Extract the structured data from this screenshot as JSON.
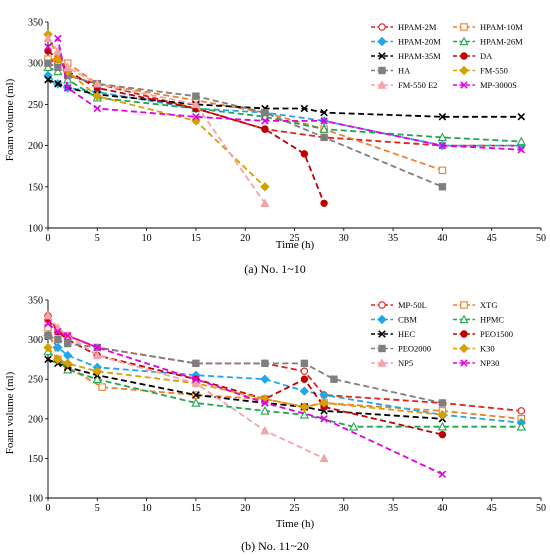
{
  "chart_data": [
    {
      "type": "line",
      "caption": "(a) No. 1~10",
      "xlabel": "Time (h)",
      "ylabel": "Foam volume (ml)",
      "xlim": [
        0,
        50
      ],
      "ylim": [
        100,
        350
      ],
      "xticks": [
        0,
        5,
        10,
        15,
        20,
        25,
        30,
        35,
        40,
        45,
        50
      ],
      "yticks": [
        100,
        150,
        200,
        250,
        300,
        350
      ],
      "grid": false,
      "legend_position": "top-right, two columns",
      "series": [
        {
          "name": "HPAM-2M",
          "color": "#e3201b",
          "marker": "circle-open",
          "x": [
            0,
            1,
            2,
            5,
            15,
            22,
            28,
            40,
            48
          ],
          "y": [
            305,
            300,
            285,
            275,
            245,
            220,
            210,
            200,
            200
          ]
        },
        {
          "name": "HPAM-10M",
          "color": "#ef7e2d",
          "marker": "square-open",
          "x": [
            0,
            1,
            2,
            5,
            15,
            22,
            28,
            40
          ],
          "y": [
            305,
            305,
            300,
            275,
            255,
            240,
            220,
            170
          ]
        },
        {
          "name": "HPAM-20M",
          "color": "#21a7e8",
          "marker": "diamond",
          "x": [
            0,
            1,
            2,
            5,
            15,
            22,
            28,
            40,
            48
          ],
          "y": [
            285,
            275,
            270,
            265,
            245,
            240,
            230,
            200,
            200
          ]
        },
        {
          "name": "HPAM-26M",
          "color": "#22a650",
          "marker": "triangle-open",
          "x": [
            0,
            1,
            2,
            5,
            15,
            22,
            28,
            40,
            48
          ],
          "y": [
            295,
            290,
            280,
            258,
            245,
            235,
            220,
            210,
            205
          ]
        },
        {
          "name": "HPAM-35M",
          "color": "#000000",
          "marker": "x",
          "x": [
            0,
            1,
            2,
            5,
            15,
            22,
            26,
            28,
            40,
            48
          ],
          "y": [
            280,
            275,
            270,
            262,
            250,
            245,
            245,
            240,
            235,
            235
          ]
        },
        {
          "name": "DA",
          "color": "#c00000",
          "marker": "circle",
          "x": [
            0,
            1,
            2,
            5,
            15,
            22,
            26,
            28
          ],
          "y": [
            315,
            305,
            290,
            270,
            245,
            220,
            190,
            130
          ]
        },
        {
          "name": "HA",
          "color": "#7f7f7f",
          "marker": "square",
          "x": [
            0,
            1,
            2,
            5,
            15,
            22,
            28,
            40
          ],
          "y": [
            300,
            295,
            285,
            275,
            260,
            240,
            210,
            150
          ]
        },
        {
          "name": "FM-550",
          "color": "#d6a000",
          "marker": "diamond",
          "x": [
            0,
            1,
            2,
            5,
            15,
            22
          ],
          "y": [
            335,
            305,
            290,
            260,
            230,
            150
          ]
        },
        {
          "name": "FM-550 E2",
          "color": "#f4a3a8",
          "marker": "triangle",
          "x": [
            0,
            1,
            2,
            5,
            15,
            22
          ],
          "y": [
            330,
            315,
            295,
            275,
            250,
            130
          ]
        },
        {
          "name": "MP-3000S",
          "color": "#e200e2",
          "marker": "x",
          "x": [
            0,
            1,
            2,
            5,
            15,
            22,
            28,
            40,
            48
          ],
          "y": [
            320,
            330,
            270,
            245,
            235,
            230,
            230,
            200,
            195
          ]
        }
      ]
    },
    {
      "type": "line",
      "caption": "(b) No. 11~20",
      "xlabel": "Time (h)",
      "ylabel": "Foam volume (ml)",
      "xlim": [
        0,
        50
      ],
      "ylim": [
        100,
        350
      ],
      "xticks": [
        0,
        5,
        10,
        15,
        20,
        25,
        30,
        35,
        40,
        45,
        50
      ],
      "yticks": [
        100,
        150,
        200,
        250,
        300,
        350
      ],
      "grid": false,
      "legend_position": "top-right, two columns",
      "series": [
        {
          "name": "MP-50L",
          "color": "#e3201b",
          "marker": "circle-open",
          "x": [
            0,
            1,
            2,
            5,
            15,
            22,
            26,
            28,
            40,
            48
          ],
          "y": [
            330,
            310,
            305,
            290,
            270,
            270,
            260,
            230,
            220,
            210
          ]
        },
        {
          "name": "XTG",
          "color": "#ef7e2d",
          "marker": "square-open",
          "x": [
            0,
            1,
            2,
            5.5,
            15,
            22,
            26,
            28,
            40,
            48
          ],
          "y": [
            315,
            275,
            265,
            240,
            230,
            225,
            215,
            220,
            210,
            200
          ]
        },
        {
          "name": "CBM",
          "color": "#21a7e8",
          "marker": "diamond",
          "x": [
            0,
            1,
            2,
            5,
            15,
            22,
            26,
            28,
            40,
            48
          ],
          "y": [
            305,
            290,
            280,
            265,
            255,
            250,
            235,
            230,
            205,
            195
          ]
        },
        {
          "name": "HPMC",
          "color": "#22a650",
          "marker": "triangle-open",
          "x": [
            0,
            1,
            2,
            5,
            15,
            22,
            26,
            31,
            40,
            48
          ],
          "y": [
            285,
            275,
            262,
            250,
            220,
            210,
            205,
            190,
            190,
            190
          ]
        },
        {
          "name": "HEC",
          "color": "#000000",
          "marker": "x",
          "x": [
            0,
            1,
            2,
            5,
            15,
            22,
            26,
            28,
            40
          ],
          "y": [
            275,
            270,
            265,
            255,
            230,
            220,
            215,
            210,
            200
          ]
        },
        {
          "name": "PEO1500",
          "color": "#c00000",
          "marker": "circle",
          "x": [
            0,
            1,
            2,
            5,
            15,
            22,
            26,
            28,
            40
          ],
          "y": [
            325,
            310,
            300,
            280,
            250,
            225,
            250,
            215,
            180
          ]
        },
        {
          "name": "PEO2000",
          "color": "#7f7f7f",
          "marker": "square",
          "x": [
            0,
            1,
            2,
            5,
            15,
            22,
            26,
            29,
            40
          ],
          "y": [
            305,
            300,
            295,
            290,
            270,
            270,
            270,
            250,
            220
          ]
        },
        {
          "name": "K30",
          "color": "#d6a000",
          "marker": "diamond",
          "x": [
            0,
            1,
            2,
            5,
            15,
            22,
            26,
            28,
            40
          ],
          "y": [
            290,
            275,
            270,
            260,
            245,
            225,
            215,
            220,
            205
          ]
        },
        {
          "name": "NP5",
          "color": "#f4a3a8",
          "marker": "triangle",
          "x": [
            0,
            1,
            2,
            5,
            15,
            22,
            28
          ],
          "y": [
            330,
            315,
            305,
            280,
            245,
            185,
            150
          ]
        },
        {
          "name": "NP30",
          "color": "#e200e2",
          "marker": "x",
          "x": [
            0,
            1,
            2,
            5,
            15,
            22,
            28,
            40
          ],
          "y": [
            320,
            310,
            305,
            290,
            250,
            220,
            200,
            130
          ]
        }
      ]
    }
  ]
}
